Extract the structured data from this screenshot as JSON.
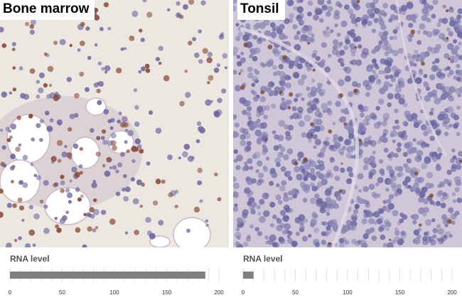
{
  "panels": [
    {
      "id": "bone-marrow",
      "tissue_label": "Bone marrow",
      "rna_label": "RNA level",
      "rna_value": 187,
      "colors": {
        "background": "#ece7e0",
        "stain": "#8a4a38",
        "nuclei": "#6f6aa0",
        "bar": "#808080"
      }
    },
    {
      "id": "tonsil",
      "tissue_label": "Tonsil",
      "rna_label": "RNA level",
      "rna_value": 10,
      "colors": {
        "background": "#cfc7d8",
        "stain": "#7a4a30",
        "nuclei": "#6a66a0",
        "bar": "#808080"
      }
    }
  ],
  "chart_data": [
    {
      "type": "bar",
      "title": "",
      "ylabel": "RNA level",
      "categories": [
        "Bone marrow"
      ],
      "values": [
        187
      ],
      "xlim": [
        0,
        200
      ],
      "ticks": [
        0,
        50,
        100,
        150,
        200
      ],
      "grid": true
    },
    {
      "type": "bar",
      "title": "",
      "ylabel": "RNA level",
      "categories": [
        "Tonsil"
      ],
      "values": [
        10
      ],
      "xlim": [
        0,
        200
      ],
      "ticks": [
        0,
        50,
        100,
        150,
        200
      ],
      "grid": true
    }
  ]
}
